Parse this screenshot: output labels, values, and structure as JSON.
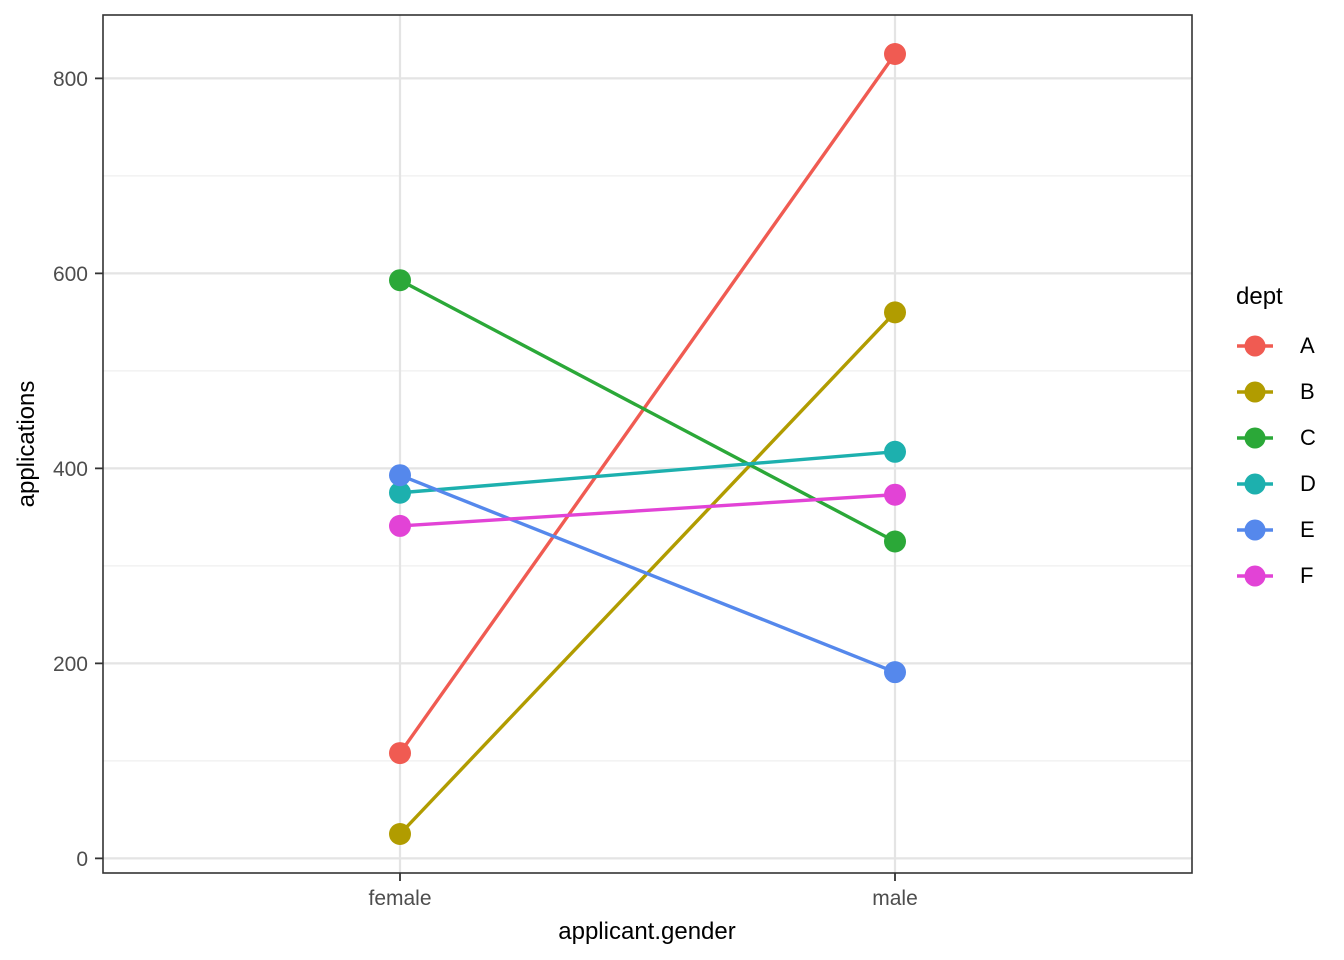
{
  "figure": {
    "background": "#ffffff"
  },
  "chart_data": {
    "type": "line",
    "title": "",
    "xlabel": "applicant.gender",
    "ylabel": "applications",
    "categories": [
      "female",
      "male"
    ],
    "series": [
      {
        "name": "A",
        "color": "#F05B52",
        "values": [
          108,
          825
        ]
      },
      {
        "name": "B",
        "color": "#B19C00",
        "values": [
          25,
          560
        ]
      },
      {
        "name": "C",
        "color": "#2BA838",
        "values": [
          593,
          325
        ]
      },
      {
        "name": "D",
        "color": "#1DB0AE",
        "values": [
          375,
          417
        ]
      },
      {
        "name": "E",
        "color": "#5588EC",
        "values": [
          393,
          191
        ]
      },
      {
        "name": "F",
        "color": "#E243D6",
        "values": [
          341,
          373
        ]
      }
    ],
    "yticks": [
      0,
      200,
      400,
      600,
      800
    ],
    "yticks_minor": [
      100,
      300,
      500,
      700
    ],
    "ylim": [
      -15,
      865
    ],
    "grid": "horizontal-major-minor, vertical-at-categories",
    "legend": {
      "title": "dept",
      "position": "right",
      "entries": [
        "A",
        "B",
        "C",
        "D",
        "E",
        "F"
      ]
    }
  },
  "style": {
    "panel_border_color": "#333333",
    "tick_color": "#333333",
    "grid_major_color": "#E4E4E4",
    "grid_minor_color": "#EFEFEF",
    "tick_label_color": "#4D4D4D",
    "point_radius": 11,
    "line_width": 3.4
  }
}
